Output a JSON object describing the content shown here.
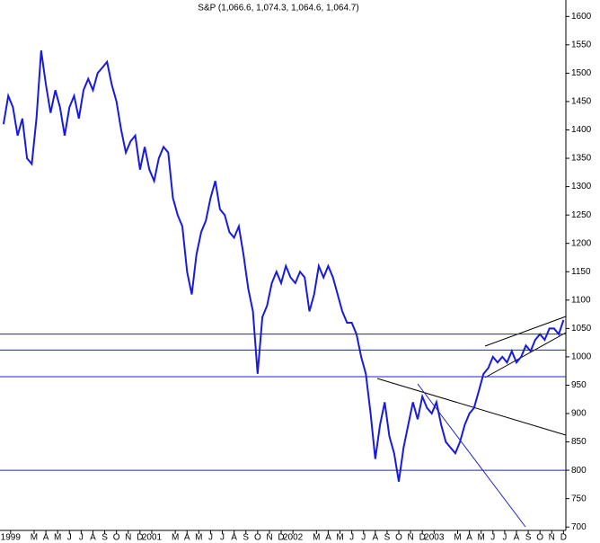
{
  "chart_data": {
    "type": "line",
    "title": "S&P (1,066.6, 1,074.3, 1,064.6, 1,064.7)",
    "x": [
      -0.6,
      -0.2,
      0.2,
      0.6,
      1.0,
      1.4,
      1.8,
      2.2,
      2.6,
      3.0,
      3.4,
      3.8,
      4.2,
      4.6,
      5.0,
      5.4,
      5.8,
      6.2,
      6.6,
      7.0,
      7.4,
      7.8,
      8.2,
      8.6,
      9.0,
      9.4,
      9.8,
      10.2,
      10.6,
      11.0,
      11.4,
      11.8,
      12.2,
      12.6,
      13.0,
      13.4,
      13.8,
      14.2,
      14.6,
      15.0,
      15.4,
      15.8,
      16.2,
      16.6,
      17.0,
      17.4,
      17.8,
      18.2,
      18.6,
      19.0,
      19.4,
      19.8,
      20.2,
      20.6,
      21.0,
      21.4,
      21.8,
      22.2,
      22.6,
      23.0,
      23.4,
      23.8,
      24.2,
      24.6,
      25.0,
      25.4,
      25.8,
      26.2,
      26.6,
      27.0,
      27.4,
      27.8,
      28.2,
      28.6,
      29.0,
      29.4,
      29.8,
      30.2,
      30.6,
      31.0,
      31.4,
      31.8,
      32.2,
      32.6,
      33.0,
      33.4,
      33.8,
      34.2,
      34.6,
      35.0,
      35.4,
      35.8,
      36.2,
      36.6,
      37.0,
      37.4,
      37.8,
      38.2,
      38.6,
      39.0,
      39.4,
      39.8,
      40.2,
      40.6,
      41.0,
      41.4,
      41.8,
      42.2,
      42.6,
      43.0,
      43.4,
      43.8,
      44.2,
      44.6,
      45.0,
      45.4,
      45.8,
      46.2,
      46.6,
      47.0
    ],
    "series": [
      {
        "name": "S&P",
        "color": "#1a1adb",
        "values": [
          1410,
          1460,
          1440,
          1390,
          1420,
          1350,
          1340,
          1420,
          1540,
          1480,
          1430,
          1470,
          1440,
          1390,
          1440,
          1460,
          1420,
          1470,
          1490,
          1470,
          1500,
          1510,
          1520,
          1480,
          1450,
          1400,
          1360,
          1380,
          1390,
          1330,
          1370,
          1330,
          1310,
          1350,
          1370,
          1360,
          1280,
          1250,
          1230,
          1150,
          1110,
          1180,
          1220,
          1240,
          1280,
          1310,
          1260,
          1250,
          1220,
          1210,
          1230,
          1180,
          1120,
          1080,
          970,
          1070,
          1090,
          1130,
          1150,
          1130,
          1160,
          1140,
          1130,
          1150,
          1140,
          1080,
          1110,
          1160,
          1140,
          1160,
          1140,
          1110,
          1080,
          1060,
          1060,
          1040,
          1000,
          970,
          900,
          820,
          880,
          920,
          860,
          830,
          780,
          840,
          880,
          920,
          890,
          930,
          910,
          900,
          920,
          880,
          850,
          840,
          830,
          850,
          880,
          900,
          910,
          940,
          970,
          980,
          1000,
          990,
          1000,
          990,
          1010,
          990,
          1000,
          1020,
          1010,
          1030,
          1040,
          1030,
          1050,
          1050,
          1040,
          1065
        ]
      }
    ],
    "hlines": [
      1040,
      1012,
      965,
      800
    ],
    "hline_color": "#2020c0",
    "xlim": [
      -0.9,
      47.2
    ],
    "ylim": [
      694,
      1629
    ],
    "yticks": [
      700,
      750,
      800,
      850,
      900,
      950,
      1000,
      1050,
      1100,
      1150,
      1200,
      1250,
      1300,
      1350,
      1400,
      1450,
      1500,
      1550,
      1600
    ],
    "xticks": [
      {
        "value": 0,
        "label": "1999"
      },
      {
        "value": 2,
        "label": "M"
      },
      {
        "value": 3,
        "label": "A"
      },
      {
        "value": 4,
        "label": "M"
      },
      {
        "value": 5,
        "label": "J"
      },
      {
        "value": 6,
        "label": "J"
      },
      {
        "value": 7,
        "label": "A"
      },
      {
        "value": 8,
        "label": "S"
      },
      {
        "value": 9,
        "label": "O"
      },
      {
        "value": 10,
        "label": "N"
      },
      {
        "value": 11,
        "label": "D"
      },
      {
        "value": 12,
        "label": "2001"
      },
      {
        "value": 14,
        "label": "M"
      },
      {
        "value": 15,
        "label": "A"
      },
      {
        "value": 16,
        "label": "M"
      },
      {
        "value": 17,
        "label": "J"
      },
      {
        "value": 18,
        "label": "J"
      },
      {
        "value": 19,
        "label": "A"
      },
      {
        "value": 20,
        "label": "S"
      },
      {
        "value": 21,
        "label": "O"
      },
      {
        "value": 22,
        "label": "N"
      },
      {
        "value": 23,
        "label": "D"
      },
      {
        "value": 24,
        "label": "2002"
      },
      {
        "value": 26,
        "label": "M"
      },
      {
        "value": 27,
        "label": "A"
      },
      {
        "value": 28,
        "label": "M"
      },
      {
        "value": 29,
        "label": "J"
      },
      {
        "value": 30,
        "label": "J"
      },
      {
        "value": 31,
        "label": "A"
      },
      {
        "value": 32,
        "label": "S"
      },
      {
        "value": 33,
        "label": "O"
      },
      {
        "value": 34,
        "label": "N"
      },
      {
        "value": 35,
        "label": "D"
      },
      {
        "value": 36,
        "label": "2003"
      },
      {
        "value": 38,
        "label": "M"
      },
      {
        "value": 39,
        "label": "A"
      },
      {
        "value": 40,
        "label": "M"
      },
      {
        "value": 41,
        "label": "J"
      },
      {
        "value": 42,
        "label": "J"
      },
      {
        "value": 43,
        "label": "A"
      },
      {
        "value": 44,
        "label": "S"
      },
      {
        "value": 45,
        "label": "O"
      },
      {
        "value": 46,
        "label": "N"
      },
      {
        "value": 47,
        "label": "D"
      }
    ]
  }
}
